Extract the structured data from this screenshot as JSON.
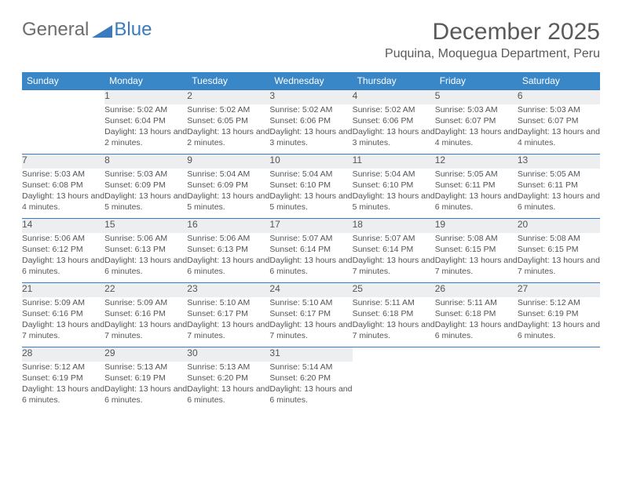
{
  "brand": {
    "text1": "General",
    "text2": "Blue",
    "color_general": "#6d6d6d",
    "color_blue": "#3a7bbf"
  },
  "title": "December 2025",
  "location": "Puquina, Moquegua Department, Peru",
  "colors": {
    "header_bg": "#3a87c8",
    "daynum_bg": "#eceeef",
    "rule": "#3a7bbf",
    "text": "#555555"
  },
  "dow": [
    "Sunday",
    "Monday",
    "Tuesday",
    "Wednesday",
    "Thursday",
    "Friday",
    "Saturday"
  ],
  "weeks": [
    [
      null,
      {
        "n": "1",
        "sr": "5:02 AM",
        "ss": "6:04 PM",
        "dl": "13 hours and 2 minutes."
      },
      {
        "n": "2",
        "sr": "5:02 AM",
        "ss": "6:05 PM",
        "dl": "13 hours and 2 minutes."
      },
      {
        "n": "3",
        "sr": "5:02 AM",
        "ss": "6:06 PM",
        "dl": "13 hours and 3 minutes."
      },
      {
        "n": "4",
        "sr": "5:02 AM",
        "ss": "6:06 PM",
        "dl": "13 hours and 3 minutes."
      },
      {
        "n": "5",
        "sr": "5:03 AM",
        "ss": "6:07 PM",
        "dl": "13 hours and 4 minutes."
      },
      {
        "n": "6",
        "sr": "5:03 AM",
        "ss": "6:07 PM",
        "dl": "13 hours and 4 minutes."
      }
    ],
    [
      {
        "n": "7",
        "sr": "5:03 AM",
        "ss": "6:08 PM",
        "dl": "13 hours and 4 minutes."
      },
      {
        "n": "8",
        "sr": "5:03 AM",
        "ss": "6:09 PM",
        "dl": "13 hours and 5 minutes."
      },
      {
        "n": "9",
        "sr": "5:04 AM",
        "ss": "6:09 PM",
        "dl": "13 hours and 5 minutes."
      },
      {
        "n": "10",
        "sr": "5:04 AM",
        "ss": "6:10 PM",
        "dl": "13 hours and 5 minutes."
      },
      {
        "n": "11",
        "sr": "5:04 AM",
        "ss": "6:10 PM",
        "dl": "13 hours and 5 minutes."
      },
      {
        "n": "12",
        "sr": "5:05 AM",
        "ss": "6:11 PM",
        "dl": "13 hours and 6 minutes."
      },
      {
        "n": "13",
        "sr": "5:05 AM",
        "ss": "6:11 PM",
        "dl": "13 hours and 6 minutes."
      }
    ],
    [
      {
        "n": "14",
        "sr": "5:06 AM",
        "ss": "6:12 PM",
        "dl": "13 hours and 6 minutes."
      },
      {
        "n": "15",
        "sr": "5:06 AM",
        "ss": "6:13 PM",
        "dl": "13 hours and 6 minutes."
      },
      {
        "n": "16",
        "sr": "5:06 AM",
        "ss": "6:13 PM",
        "dl": "13 hours and 6 minutes."
      },
      {
        "n": "17",
        "sr": "5:07 AM",
        "ss": "6:14 PM",
        "dl": "13 hours and 6 minutes."
      },
      {
        "n": "18",
        "sr": "5:07 AM",
        "ss": "6:14 PM",
        "dl": "13 hours and 7 minutes."
      },
      {
        "n": "19",
        "sr": "5:08 AM",
        "ss": "6:15 PM",
        "dl": "13 hours and 7 minutes."
      },
      {
        "n": "20",
        "sr": "5:08 AM",
        "ss": "6:15 PM",
        "dl": "13 hours and 7 minutes."
      }
    ],
    [
      {
        "n": "21",
        "sr": "5:09 AM",
        "ss": "6:16 PM",
        "dl": "13 hours and 7 minutes."
      },
      {
        "n": "22",
        "sr": "5:09 AM",
        "ss": "6:16 PM",
        "dl": "13 hours and 7 minutes."
      },
      {
        "n": "23",
        "sr": "5:10 AM",
        "ss": "6:17 PM",
        "dl": "13 hours and 7 minutes."
      },
      {
        "n": "24",
        "sr": "5:10 AM",
        "ss": "6:17 PM",
        "dl": "13 hours and 7 minutes."
      },
      {
        "n": "25",
        "sr": "5:11 AM",
        "ss": "6:18 PM",
        "dl": "13 hours and 7 minutes."
      },
      {
        "n": "26",
        "sr": "5:11 AM",
        "ss": "6:18 PM",
        "dl": "13 hours and 6 minutes."
      },
      {
        "n": "27",
        "sr": "5:12 AM",
        "ss": "6:19 PM",
        "dl": "13 hours and 6 minutes."
      }
    ],
    [
      {
        "n": "28",
        "sr": "5:12 AM",
        "ss": "6:19 PM",
        "dl": "13 hours and 6 minutes."
      },
      {
        "n": "29",
        "sr": "5:13 AM",
        "ss": "6:19 PM",
        "dl": "13 hours and 6 minutes."
      },
      {
        "n": "30",
        "sr": "5:13 AM",
        "ss": "6:20 PM",
        "dl": "13 hours and 6 minutes."
      },
      {
        "n": "31",
        "sr": "5:14 AM",
        "ss": "6:20 PM",
        "dl": "13 hours and 6 minutes."
      },
      null,
      null,
      null
    ]
  ],
  "labels": {
    "sunrise": "Sunrise:",
    "sunset": "Sunset:",
    "daylight": "Daylight:"
  }
}
